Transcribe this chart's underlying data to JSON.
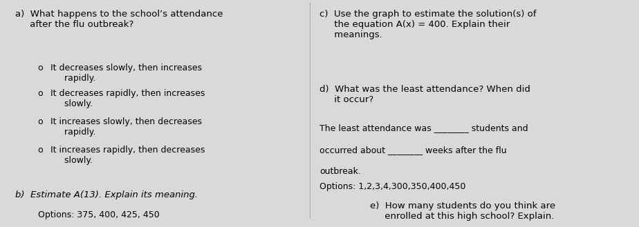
{
  "bg_color": "#d9d9d9",
  "text_color": "#000000",
  "left_col": {
    "a_heading": "a)  What happens to the school’s attendance\n     after the flu outbreak?",
    "a_options": [
      "It decreases slowly, then increases\n     rapidly.",
      "It decreases rapidly, then increases\n     slowly.",
      "It increases slowly, then decreases\n     rapidly.",
      "It increases rapidly, then decreases\n     slowly."
    ],
    "b_heading": "b)  Estimate A(13). Explain its meaning.",
    "b_options": "Options: 375, 400, 425, 450"
  },
  "right_col": {
    "c_heading": "c)  Use the graph to estimate the solution(s) of\n     the equation A(x) = 400. Explain their\n     meanings.",
    "d_heading": "d)  What was the least attendance? When did\n     it occur?",
    "d_text1": "The least attendance was ________ students and",
    "d_text2": "occurred about ________ weeks after the flu",
    "d_text3": "outbreak.",
    "d_options": "Options: 1,2,3,4,300,350,400,450",
    "e_heading": "e)  How many students do you think are\n     enrolled at this high school? Explain."
  }
}
